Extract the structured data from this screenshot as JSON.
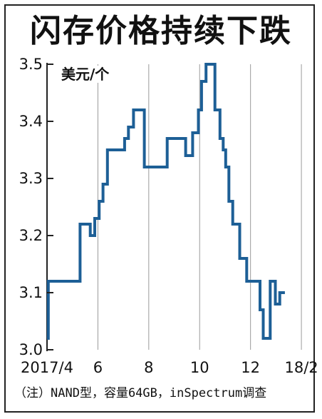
{
  "chart_data": {
    "type": "line",
    "title": "闪存价格持续下跌",
    "ylabel": "美元/个",
    "xlabel": "",
    "ylim": [
      3.0,
      3.5
    ],
    "yticks": [
      3.0,
      3.1,
      3.2,
      3.3,
      3.4,
      3.5
    ],
    "ytick_labels": [
      "3.0",
      "3.1",
      "3.2",
      "3.3",
      "3.4",
      "3.5"
    ],
    "xlim": [
      0,
      41
    ],
    "xticks": [
      0,
      8,
      16,
      24,
      32,
      40
    ],
    "xtick_labels": [
      "2017/4",
      "6",
      "8",
      "10",
      "12",
      "18/2"
    ],
    "grid": "vertical",
    "step": true,
    "colors": {
      "line": "#1d5f96",
      "grid": "#9a9a9a",
      "axis": "#222222"
    },
    "series": [
      {
        "name": "",
        "x": [
          0,
          0.2,
          2.7,
          5.2,
          6.8,
          7.5,
          8.2,
          8.8,
          9.5,
          10.4,
          12.2,
          12.8,
          13.6,
          15.3,
          16,
          17.4,
          18.9,
          20.2,
          21.8,
          22.9,
          23.8,
          24.3,
          25,
          26.4,
          27.2,
          27.7,
          28.1,
          28.6,
          29.2,
          29.5,
          30.3,
          31.4,
          33.5,
          34,
          35.1,
          35.4,
          35.9,
          36.6,
          37.4
        ],
        "y": [
          3.02,
          3.12,
          3.12,
          3.22,
          3.2,
          3.23,
          3.26,
          3.29,
          3.35,
          3.35,
          3.37,
          3.39,
          3.42,
          3.32,
          3.32,
          3.32,
          3.37,
          3.37,
          3.34,
          3.38,
          3.42,
          3.47,
          3.5,
          3.42,
          3.37,
          3.35,
          3.32,
          3.26,
          3.22,
          3.22,
          3.16,
          3.12,
          3.07,
          3.02,
          3.12,
          3.12,
          3.08,
          3.1,
          3.1
        ]
      }
    ]
  },
  "footnote": "（注）NAND型，容量64GB，inSpectrum调查"
}
